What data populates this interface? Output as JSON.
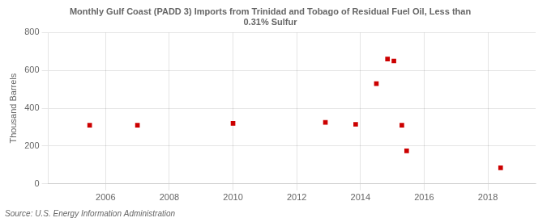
{
  "chart_data": {
    "type": "scatter",
    "title": "Monthly Gulf Coast (PADD 3) Imports from Trinidad and Tobago of Residual Fuel Oil, Less than\n0.31% Sulfur",
    "ylabel": "Thousand Barrels",
    "annotation": "Source: U.S. Energy Information Administration",
    "x": [
      2005.5,
      2007.0,
      2010.0,
      2012.9,
      2013.85,
      2014.5,
      2014.85,
      2015.05,
      2015.3,
      2015.45,
      2018.4
    ],
    "values": [
      310,
      310,
      320,
      325,
      315,
      530,
      660,
      650,
      310,
      175,
      85
    ],
    "color": "#cc0000",
    "marker": "square",
    "xlim": [
      2004.2,
      2019.5
    ],
    "xticks": [
      2006,
      2008,
      2010,
      2012,
      2014,
      2016,
      2018
    ],
    "ylim": [
      0,
      800
    ],
    "yticks": [
      0,
      200,
      400,
      600,
      800
    ],
    "grid": true
  }
}
